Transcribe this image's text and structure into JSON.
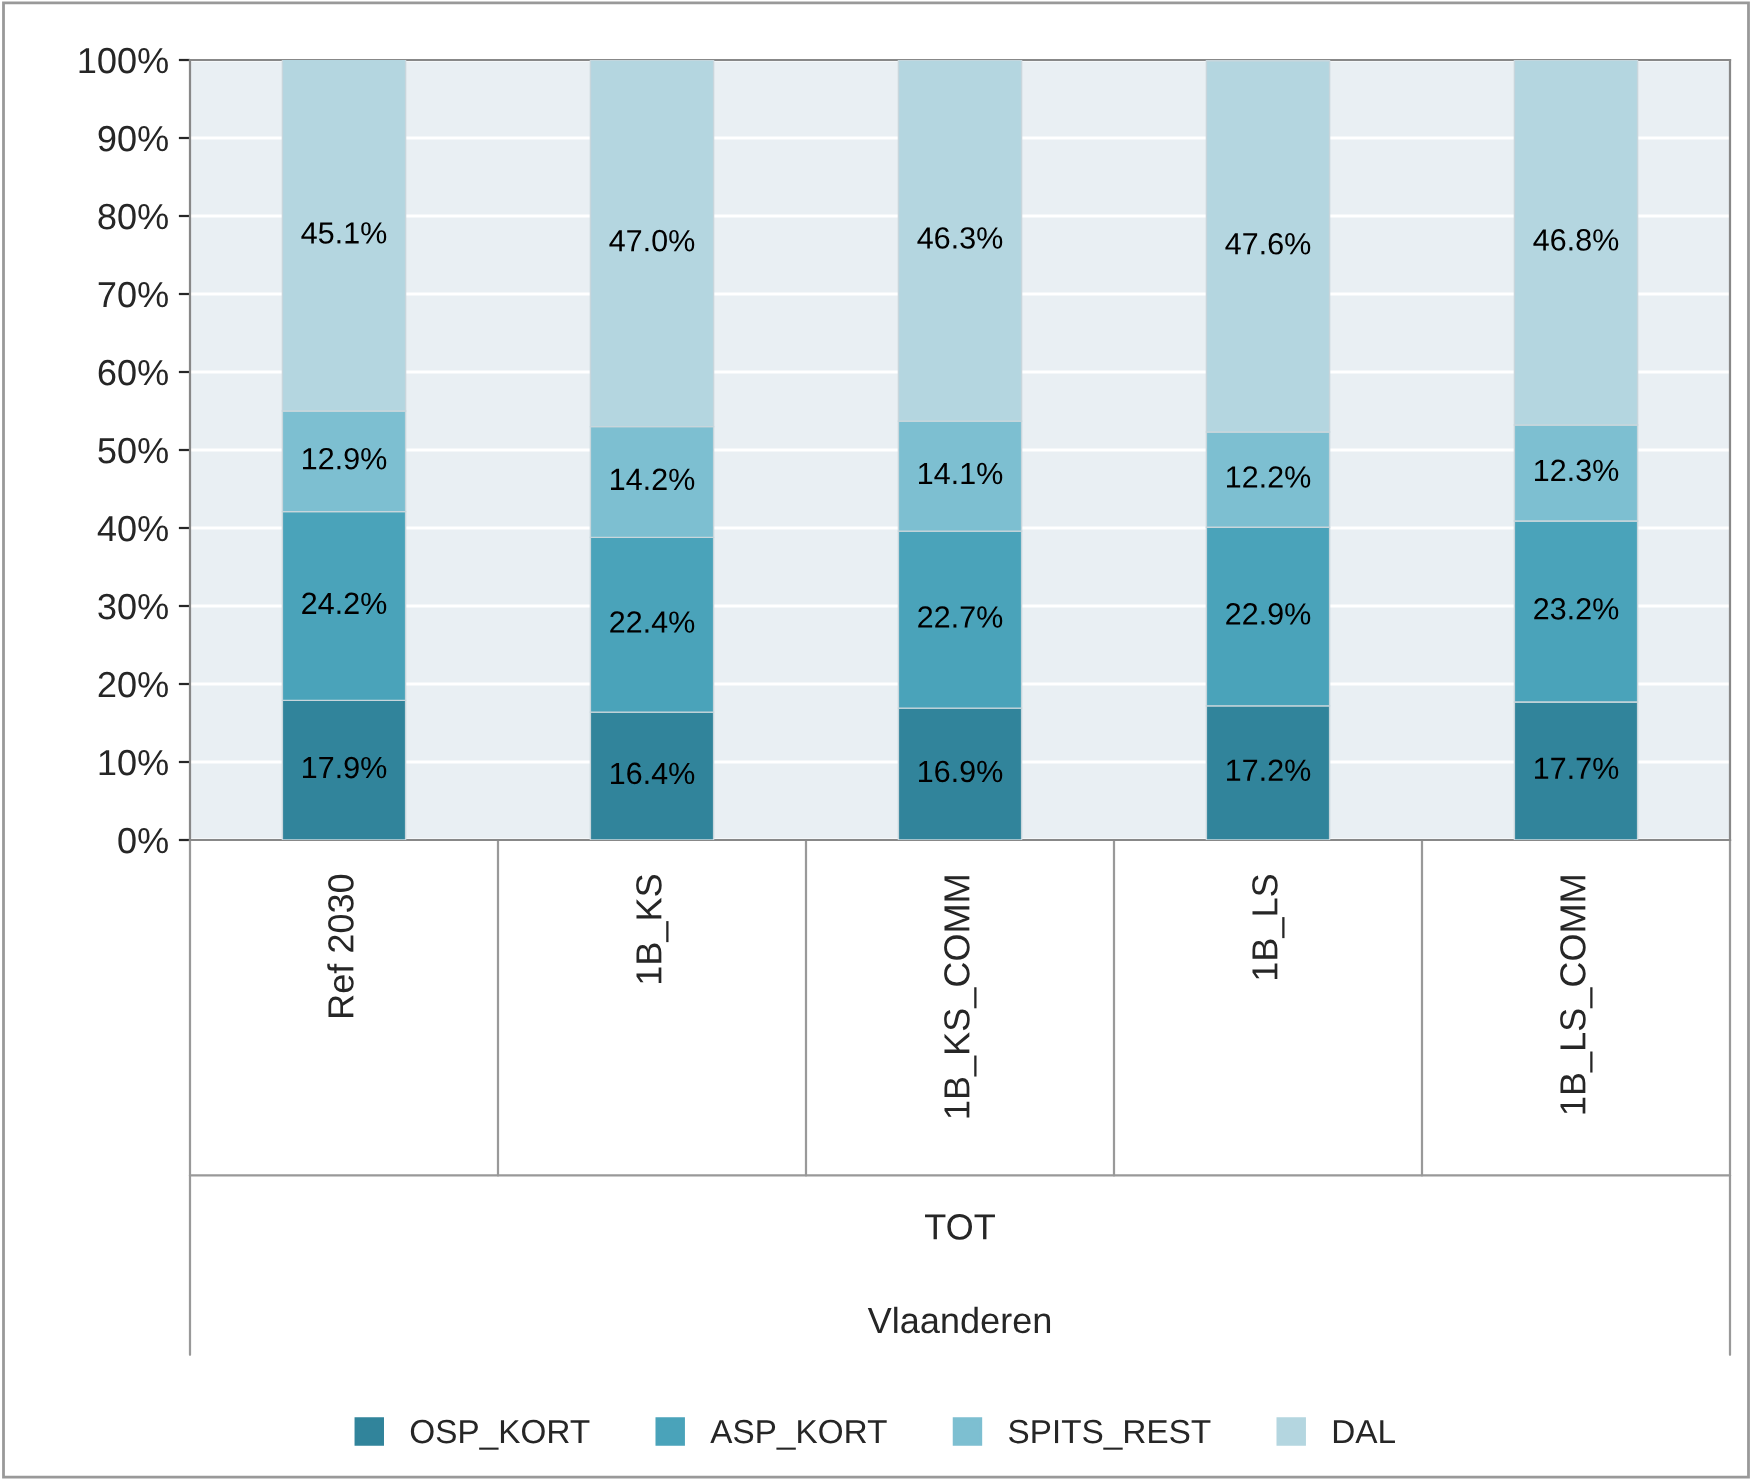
{
  "chart_data": {
    "type": "bar",
    "stacked": true,
    "categories": [
      "Ref 2030",
      "1B_KS",
      "1B_KS_COMM",
      "1B_LS",
      "1B_LS_COMM"
    ],
    "series": [
      {
        "name": "OSP_KORT",
        "color": "#31849b",
        "values": [
          17.9,
          16.4,
          16.9,
          17.2,
          17.7
        ],
        "value_labels": [
          "17.9%",
          "16.4%",
          "16.9%",
          "17.2%",
          "17.7%"
        ]
      },
      {
        "name": "ASP_KORT",
        "color": "#4aa3ba",
        "values": [
          24.2,
          22.4,
          22.7,
          22.9,
          23.2
        ],
        "value_labels": [
          "24.2%",
          "22.4%",
          "22.7%",
          "22.9%",
          "23.2%"
        ]
      },
      {
        "name": "SPITS_REST",
        "color": "#7dbfd1",
        "values": [
          12.9,
          14.2,
          14.1,
          12.2,
          12.3
        ],
        "value_labels": [
          "12.9%",
          "14.2%",
          "14.1%",
          "12.2%",
          "12.3%"
        ]
      },
      {
        "name": "DAL",
        "color": "#b4d6e0",
        "values": [
          45.1,
          47.0,
          46.3,
          47.6,
          46.8
        ],
        "value_labels": [
          "45.1%",
          "47.0%",
          "46.3%",
          "47.6%",
          "46.8%"
        ]
      }
    ],
    "ylim": [
      0,
      100
    ],
    "yticks": [
      {
        "value": 0,
        "label": "0%"
      },
      {
        "value": 10,
        "label": "10%"
      },
      {
        "value": 20,
        "label": "20%"
      },
      {
        "value": 30,
        "label": "30%"
      },
      {
        "value": 40,
        "label": "40%"
      },
      {
        "value": 50,
        "label": "50%"
      },
      {
        "value": 60,
        "label": "60%"
      },
      {
        "value": 70,
        "label": "70%"
      },
      {
        "value": 80,
        "label": "80%"
      },
      {
        "value": 90,
        "label": "90%"
      },
      {
        "value": 100,
        "label": "100%"
      }
    ],
    "grid": "y",
    "legend": "bottom",
    "annotations": [
      "TOT",
      "Vlaanderen"
    ]
  }
}
